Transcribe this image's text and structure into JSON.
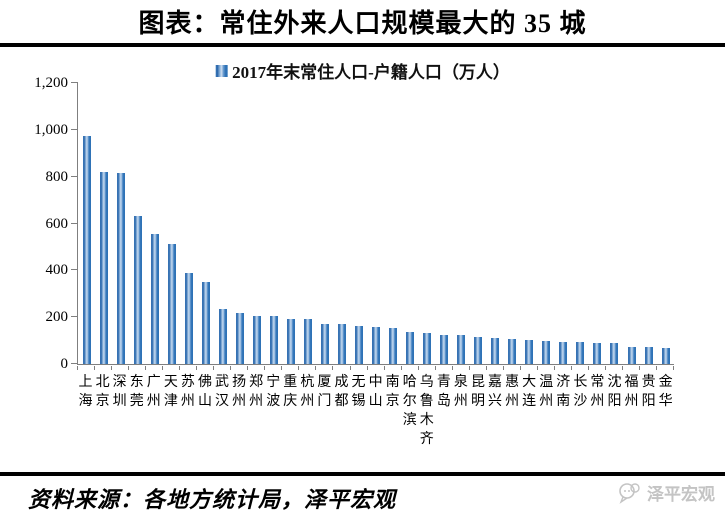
{
  "title": "图表：常住外来人口规模最大的 35 城",
  "chart_data": {
    "type": "bar",
    "title": "常住外来人口规模最大的35城",
    "legend": "2017年末常住人口-户籍人口（万人）",
    "legend_position": "top-center",
    "grid": false,
    "xlabel": "",
    "ylabel": "",
    "ylim": [
      0,
      1200
    ],
    "ytick_labels": [
      "0",
      "200",
      "400",
      "600",
      "800",
      "1,000",
      "1,200"
    ],
    "categories": [
      "上海",
      "北京",
      "深圳",
      "东莞",
      "广州",
      "天津",
      "苏州",
      "佛山",
      "武汉",
      "扬州",
      "郑州",
      "宁波",
      "重庆",
      "杭州",
      "厦门",
      "成都",
      "无锡",
      "中山",
      "南京",
      "哈尔滨",
      "乌鲁木齐",
      "青岛",
      "泉州",
      "昆明",
      "嘉兴",
      "惠州",
      "大连",
      "温州",
      "济南",
      "长沙",
      "常州",
      "沈阳",
      "福州",
      "贵阳",
      "金华"
    ],
    "values": [
      975,
      820,
      815,
      630,
      555,
      512,
      388,
      350,
      235,
      218,
      205,
      203,
      194,
      192,
      172,
      170,
      162,
      156,
      155,
      138,
      131,
      126,
      124,
      117,
      109,
      107,
      103,
      98,
      96,
      95,
      89,
      88,
      74,
      71,
      70
    ]
  },
  "footer": {
    "source": "资料来源：各地方统计局，泽平宏观",
    "watermark": "泽平宏观"
  },
  "colors": {
    "bar_dark": "#205fa6",
    "bar_mid": "#2e72b6",
    "bar_light": "#cdddf0",
    "axis": "#7f7f7f",
    "rule": "#000000",
    "watermark": "#c4c4c4"
  }
}
